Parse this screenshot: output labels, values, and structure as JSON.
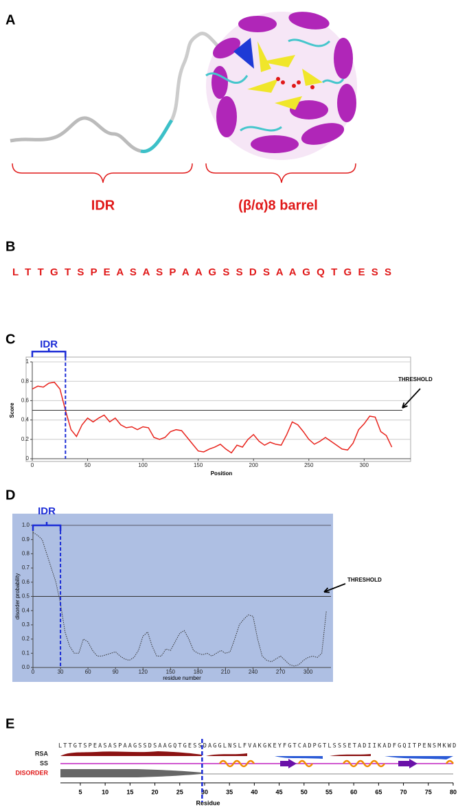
{
  "panel_a": {
    "label": "A",
    "annotations": [
      "IDR",
      "(β/α)8 barrel"
    ]
  },
  "panel_b": {
    "label": "B",
    "sequence": "L T T G T S P E A S A S P A A G S S D S A A G Q T G E S S"
  },
  "chart_data": [
    {
      "type": "line",
      "panel_label": "C",
      "xlabel": "Position",
      "ylabel": "Score",
      "x": [
        0,
        5,
        10,
        15,
        20,
        25,
        30,
        35,
        40,
        45,
        50,
        55,
        60,
        65,
        70,
        75,
        80,
        85,
        90,
        95,
        100,
        105,
        110,
        115,
        120,
        125,
        130,
        135,
        140,
        145,
        150,
        155,
        160,
        165,
        170,
        175,
        180,
        185,
        190,
        195,
        200,
        205,
        210,
        215,
        220,
        225,
        230,
        235,
        240,
        245,
        250,
        255,
        260,
        265,
        270,
        275,
        280,
        285,
        290,
        295,
        300,
        305,
        310,
        315,
        320,
        325
      ],
      "values": [
        0.72,
        0.75,
        0.74,
        0.78,
        0.79,
        0.72,
        0.5,
        0.3,
        0.23,
        0.35,
        0.42,
        0.38,
        0.42,
        0.45,
        0.38,
        0.42,
        0.35,
        0.32,
        0.33,
        0.3,
        0.33,
        0.32,
        0.22,
        0.2,
        0.22,
        0.28,
        0.3,
        0.29,
        0.22,
        0.15,
        0.08,
        0.07,
        0.1,
        0.12,
        0.15,
        0.1,
        0.06,
        0.14,
        0.12,
        0.2,
        0.25,
        0.18,
        0.14,
        0.17,
        0.15,
        0.14,
        0.25,
        0.38,
        0.35,
        0.28,
        0.2,
        0.15,
        0.18,
        0.22,
        0.18,
        0.14,
        0.1,
        0.09,
        0.16,
        0.3,
        0.36,
        0.44,
        0.43,
        0.28,
        0.24,
        0.12
      ],
      "color": "#e8221b",
      "line_style": "solid",
      "xlim": [
        0,
        342
      ],
      "ylim": [
        0,
        1
      ],
      "xticks": [
        0,
        50,
        100,
        150,
        200,
        250,
        300
      ],
      "yticks": [
        0,
        0.2,
        0.4,
        0.6,
        0.8,
        1
      ],
      "grid": true,
      "threshold": {
        "value": 0.5,
        "label": "THRESHOLD"
      },
      "idr": {
        "label": "IDR",
        "range": [
          0,
          30
        ]
      }
    },
    {
      "type": "line",
      "panel_label": "D",
      "xlabel": "residue number",
      "ylabel": "disorder probability",
      "x": [
        0,
        5,
        10,
        15,
        20,
        25,
        30,
        35,
        40,
        45,
        50,
        55,
        60,
        65,
        70,
        75,
        80,
        85,
        90,
        95,
        100,
        105,
        110,
        115,
        120,
        125,
        130,
        135,
        140,
        145,
        150,
        155,
        160,
        165,
        170,
        175,
        180,
        185,
        190,
        195,
        200,
        205,
        210,
        215,
        220,
        225,
        230,
        235,
        240,
        245,
        250,
        255,
        260,
        265,
        270,
        275,
        280,
        285,
        290,
        295,
        300,
        305,
        310,
        315,
        320
      ],
      "values": [
        0.95,
        0.93,
        0.9,
        0.8,
        0.7,
        0.6,
        0.45,
        0.25,
        0.15,
        0.1,
        0.1,
        0.2,
        0.18,
        0.12,
        0.08,
        0.08,
        0.09,
        0.1,
        0.11,
        0.08,
        0.06,
        0.05,
        0.07,
        0.12,
        0.22,
        0.25,
        0.15,
        0.08,
        0.08,
        0.13,
        0.12,
        0.18,
        0.24,
        0.26,
        0.2,
        0.12,
        0.1,
        0.09,
        0.1,
        0.08,
        0.1,
        0.12,
        0.1,
        0.11,
        0.2,
        0.3,
        0.34,
        0.37,
        0.36,
        0.2,
        0.08,
        0.05,
        0.04,
        0.06,
        0.08,
        0.05,
        0.02,
        0.01,
        0.02,
        0.05,
        0.07,
        0.08,
        0.07,
        0.1,
        0.4
      ],
      "color": "#333333",
      "line_style": "dotted",
      "background": "#aebfe3",
      "xlim": [
        0,
        325
      ],
      "ylim": [
        0,
        1
      ],
      "xticks": [
        0,
        30,
        60,
        90,
        120,
        150,
        180,
        210,
        240,
        270,
        300
      ],
      "yticks": [
        {
          "value": 0,
          "label": "0.0"
        },
        {
          "value": 0.1,
          "label": "0.1"
        },
        {
          "value": 0.2,
          "label": "0.2"
        },
        {
          "value": 0.3,
          "label": "0.3"
        },
        {
          "value": 0.4,
          "label": "0.4"
        },
        {
          "value": 0.5,
          "label": "0.5"
        },
        {
          "value": 0.6,
          "label": "0.6"
        },
        {
          "value": 0.7,
          "label": "0.7"
        },
        {
          "value": 0.8,
          "label": "0.8"
        },
        {
          "value": 0.9,
          "label": "0.9"
        },
        {
          "value": 1,
          "label": "1.0"
        }
      ],
      "grid": false,
      "threshold": {
        "value": 0.5,
        "label": "THRESHOLD"
      },
      "idr": {
        "label": "IDR",
        "range": [
          0,
          30
        ]
      }
    }
  ],
  "panel_e": {
    "label": "E",
    "sequence": "LTTGTSPEASASPAAGSSDSAAGQTGESSDAGGLNSLFVAKGKEYFGTCADPGTLSSSETADIIKADFGQITPENSMKWD",
    "tracks": [
      "RSA",
      "SS",
      "DISORDER"
    ],
    "xticks": [
      5,
      10,
      15,
      20,
      25,
      30,
      35,
      40,
      45,
      50,
      55,
      60,
      65,
      70,
      75,
      80
    ],
    "xlabel": "Residue",
    "idr_boundary": 29.5
  }
}
